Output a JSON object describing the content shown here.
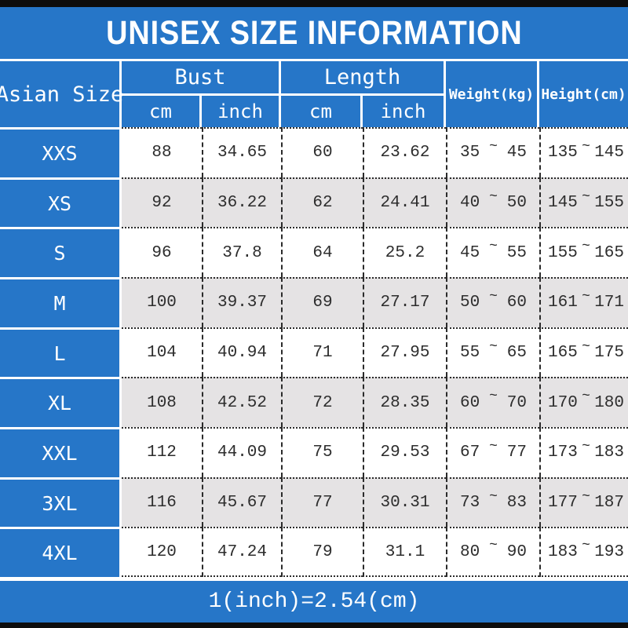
{
  "title": "UNISEX SIZE INFORMATION",
  "footer_note": "1(inch)=2.54(cm)",
  "colors": {
    "blue": "#2676c8",
    "alt_row_gray": "#e5e3e4",
    "text_dark": "#2d2d2d",
    "line_white": "#ffffff",
    "bar_black": "#0d0d0d"
  },
  "table": {
    "corner_header": "Asian Size",
    "groups": [
      {
        "label": "Bust",
        "sub": [
          "cm",
          "inch"
        ]
      },
      {
        "label": "Length",
        "sub": [
          "cm",
          "inch"
        ]
      }
    ],
    "single_headers": [
      "Weight(kg)",
      "Height(cm)"
    ],
    "tilde": "~",
    "rows": [
      {
        "size": "XXS",
        "bust_cm": "88",
        "bust_inch": "34.65",
        "len_cm": "60",
        "len_inch": "23.62",
        "weight_min": "35",
        "weight_max": "45",
        "height_min": "135",
        "height_max": "145"
      },
      {
        "size": "XS",
        "bust_cm": "92",
        "bust_inch": "36.22",
        "len_cm": "62",
        "len_inch": "24.41",
        "weight_min": "40",
        "weight_max": "50",
        "height_min": "145",
        "height_max": "155"
      },
      {
        "size": "S",
        "bust_cm": "96",
        "bust_inch": "37.8",
        "len_cm": "64",
        "len_inch": "25.2",
        "weight_min": "45",
        "weight_max": "55",
        "height_min": "155",
        "height_max": "165"
      },
      {
        "size": "M",
        "bust_cm": "100",
        "bust_inch": "39.37",
        "len_cm": "69",
        "len_inch": "27.17",
        "weight_min": "50",
        "weight_max": "60",
        "height_min": "161",
        "height_max": "171"
      },
      {
        "size": "L",
        "bust_cm": "104",
        "bust_inch": "40.94",
        "len_cm": "71",
        "len_inch": "27.95",
        "weight_min": "55",
        "weight_max": "65",
        "height_min": "165",
        "height_max": "175"
      },
      {
        "size": "XL",
        "bust_cm": "108",
        "bust_inch": "42.52",
        "len_cm": "72",
        "len_inch": "28.35",
        "weight_min": "60",
        "weight_max": "70",
        "height_min": "170",
        "height_max": "180"
      },
      {
        "size": "XXL",
        "bust_cm": "112",
        "bust_inch": "44.09",
        "len_cm": "75",
        "len_inch": "29.53",
        "weight_min": "67",
        "weight_max": "77",
        "height_min": "173",
        "height_max": "183"
      },
      {
        "size": "3XL",
        "bust_cm": "116",
        "bust_inch": "45.67",
        "len_cm": "77",
        "len_inch": "30.31",
        "weight_min": "73",
        "weight_max": "83",
        "height_min": "177",
        "height_max": "187"
      },
      {
        "size": "4XL",
        "bust_cm": "120",
        "bust_inch": "47.24",
        "len_cm": "79",
        "len_inch": "31.1",
        "weight_min": "80",
        "weight_max": "90",
        "height_min": "183",
        "height_max": "193"
      }
    ]
  }
}
